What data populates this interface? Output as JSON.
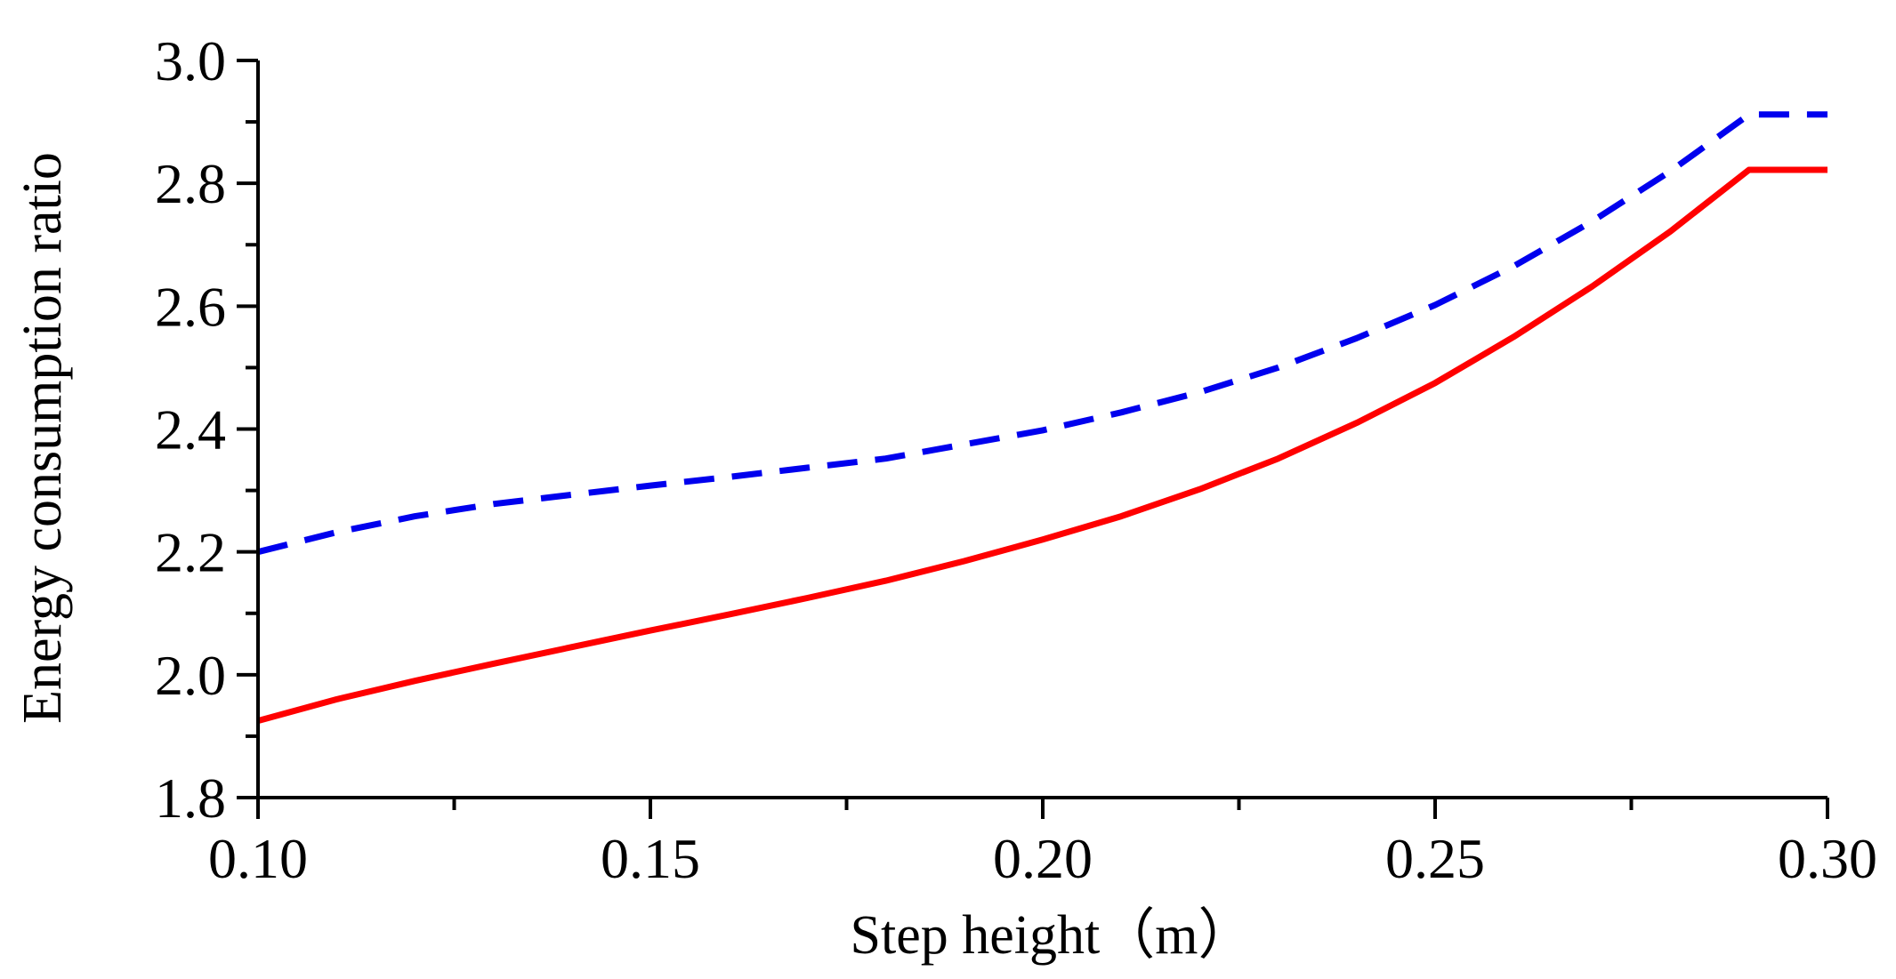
{
  "chart_data": {
    "type": "line",
    "title": "",
    "xlabel": "Step height（m）",
    "ylabel": "Energy consumption ratio",
    "xlim": [
      0.1,
      0.3
    ],
    "ylim": [
      1.8,
      3.0
    ],
    "x_ticks": [
      "0.10",
      "0.15",
      "0.20",
      "0.25",
      "0.30"
    ],
    "y_ticks": [
      "1.8",
      "2.0",
      "2.2",
      "2.4",
      "2.6",
      "2.8",
      "3.0"
    ],
    "x": [
      0.1,
      0.11,
      0.12,
      0.13,
      0.14,
      0.15,
      0.16,
      0.17,
      0.18,
      0.19,
      0.2,
      0.21,
      0.22,
      0.23,
      0.24,
      0.25,
      0.26,
      0.27,
      0.28,
      0.29,
      0.3
    ],
    "series": [
      {
        "name": "solid",
        "color": "#ff0000",
        "style": "solid",
        "values": [
          1.925,
          1.96,
          1.99,
          2.018,
          2.045,
          2.072,
          2.098,
          2.125,
          2.153,
          2.185,
          2.22,
          2.258,
          2.302,
          2.352,
          2.41,
          2.475,
          2.55,
          2.632,
          2.722,
          2.822,
          2.822
        ]
      },
      {
        "name": "dashed",
        "color": "#0000ee",
        "style": "dashed",
        "values": [
          2.2,
          2.232,
          2.258,
          2.278,
          2.293,
          2.308,
          2.322,
          2.337,
          2.352,
          2.375,
          2.398,
          2.427,
          2.46,
          2.5,
          2.548,
          2.602,
          2.665,
          2.738,
          2.82,
          2.912,
          2.912
        ]
      }
    ]
  }
}
